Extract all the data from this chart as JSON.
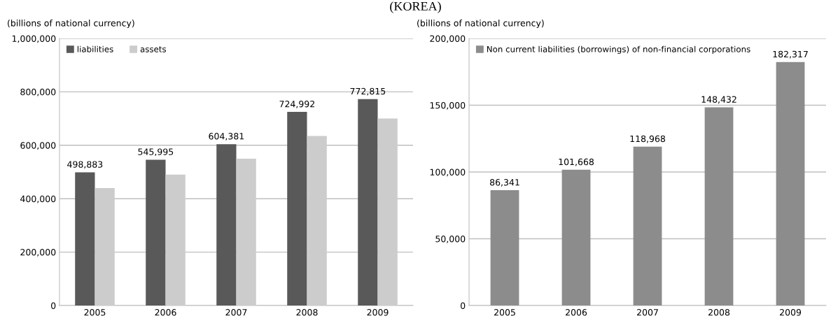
{
  "chart_data": [
    {
      "type": "bar",
      "title": "(KOREA)",
      "annotations": [
        "(billions of national currency)"
      ],
      "categories": [
        "2005",
        "2006",
        "2007",
        "2008",
        "2009"
      ],
      "series": [
        {
          "name": "liabilities",
          "color": "#595959",
          "values": [
            498883,
            545995,
            604381,
            724992,
            772815
          ],
          "value_labels": [
            "498,883",
            "545,995",
            "604,381",
            "724,992",
            "772,815"
          ]
        },
        {
          "name": "assets",
          "color": "#cccccc",
          "values": [
            440000,
            490000,
            550000,
            635000,
            700000
          ]
        }
      ],
      "ylim": [
        0,
        1000000
      ],
      "yticks": [
        {
          "value": 0,
          "label": "0"
        },
        {
          "value": 200000,
          "label": "200,000"
        },
        {
          "value": 400000,
          "label": "400,000"
        },
        {
          "value": 600000,
          "label": "600,000"
        },
        {
          "value": 800000,
          "label": "800,000"
        },
        {
          "value": 1000000,
          "label": "1,000,000"
        }
      ],
      "grid": "y",
      "legend": "top left"
    },
    {
      "type": "bar",
      "annotations": [
        "(billions of national currency)"
      ],
      "categories": [
        "2005",
        "2006",
        "2007",
        "2008",
        "2009"
      ],
      "series": [
        {
          "name": "Non current liabilities (borrowings) of non-financial corporations",
          "color": "#8c8c8c",
          "values": [
            86341,
            101668,
            118968,
            148432,
            182317
          ],
          "value_labels": [
            "86,341",
            "101,668",
            "118,968",
            "148,432",
            "182,317"
          ]
        }
      ],
      "ylim": [
        0,
        200000
      ],
      "yticks": [
        {
          "value": 0,
          "label": "0"
        },
        {
          "value": 50000,
          "label": "50,000"
        },
        {
          "value": 100000,
          "label": "100,000"
        },
        {
          "value": 150000,
          "label": "150,000"
        },
        {
          "value": 200000,
          "label": "200,000"
        }
      ],
      "grid": "y",
      "legend": "top left"
    }
  ]
}
